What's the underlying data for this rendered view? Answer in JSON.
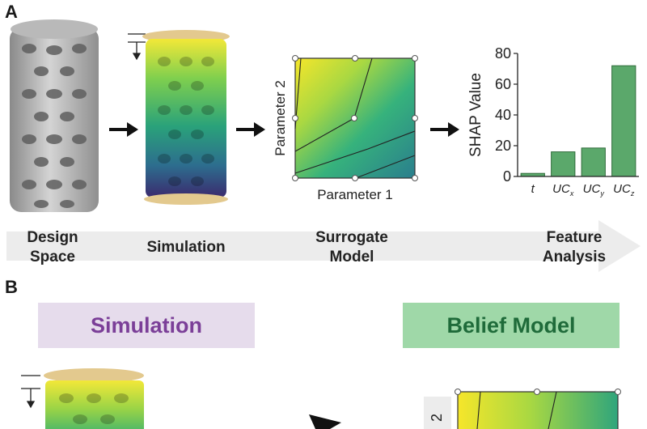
{
  "panel_a": {
    "letter": "A",
    "stages": {
      "design": [
        "Design",
        "Space"
      ],
      "simulation": "Simulation",
      "surrogate": [
        "Surrogate",
        "Model"
      ],
      "feature": [
        "Feature",
        "Analysis"
      ]
    },
    "surrogate_plot": {
      "xlabel": "Parameter 1",
      "ylabel": "Parameter 2"
    }
  },
  "panel_b": {
    "letter": "B",
    "simulation_box": {
      "label": "Simulation",
      "bg": "#e6dcec",
      "color": "#7b3f98"
    },
    "belief_box": {
      "label": "Belief Model",
      "bg": "#9fd8a8",
      "color": "#1f6b3a"
    },
    "partial_axis_tick": "2"
  },
  "colors": {
    "bar": "#5ba86b",
    "arrow": "#111111",
    "band": "#ececec"
  },
  "chart_data": {
    "type": "bar",
    "categories": [
      "t",
      "UCx",
      "UCy",
      "UCz"
    ],
    "category_labels": [
      {
        "base": "t",
        "sub": ""
      },
      {
        "base": "UC",
        "sub": "x"
      },
      {
        "base": "UC",
        "sub": "y"
      },
      {
        "base": "UC",
        "sub": "z"
      }
    ],
    "values": [
      2,
      16,
      18.5,
      72
    ],
    "ylabel": "SHAP Value",
    "yticks": [
      0,
      20,
      40,
      60,
      80
    ],
    "ylim": [
      0,
      80
    ],
    "grid": false
  }
}
